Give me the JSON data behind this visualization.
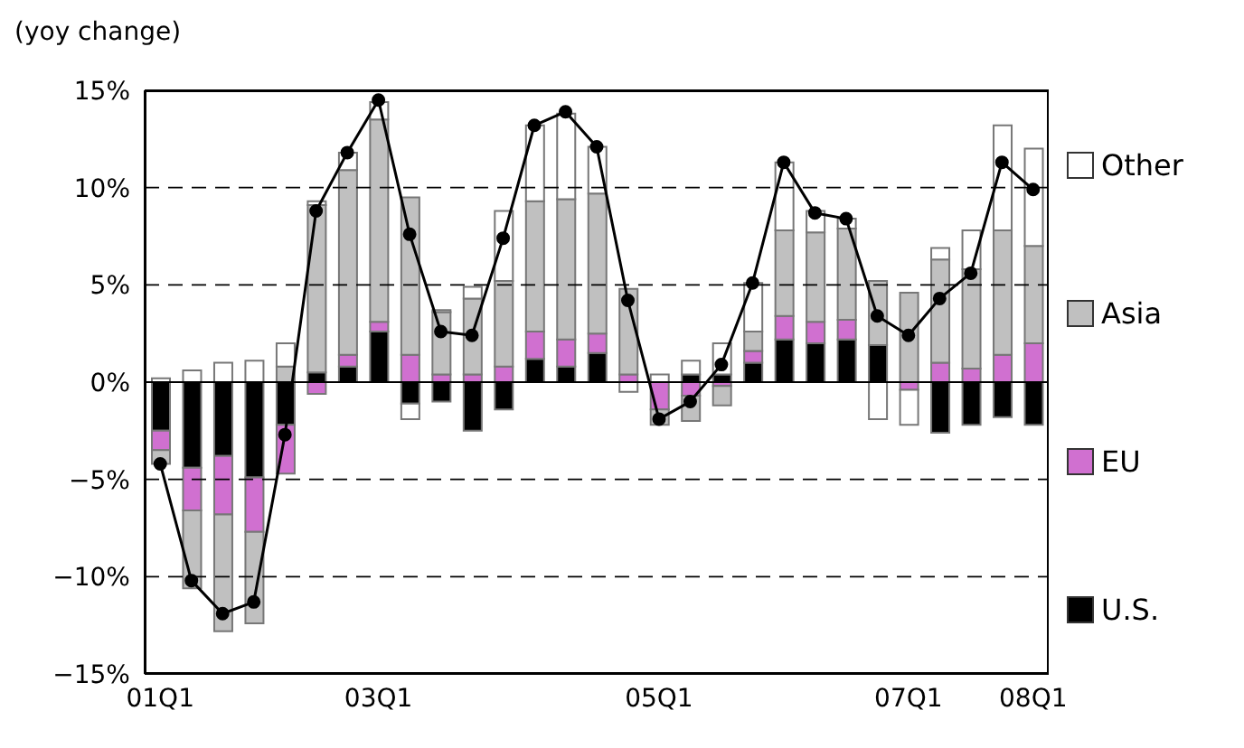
{
  "chart_data": {
    "type": "bar",
    "stacked": true,
    "ylabel": "(yoy change)",
    "categories": [
      "01Q1",
      null,
      null,
      null,
      null,
      null,
      null,
      "03Q1",
      null,
      null,
      null,
      null,
      null,
      null,
      null,
      null,
      "05Q1",
      null,
      null,
      null,
      null,
      null,
      null,
      null,
      "07Q1",
      null,
      null,
      null,
      "08Q1"
    ],
    "series": [
      {
        "name": "U.S.",
        "color": "#000000",
        "values": [
          -2.5,
          -4.4,
          -3.8,
          -4.9,
          -2.2,
          0.5,
          0.8,
          2.6,
          -1.1,
          -1.0,
          -2.5,
          -1.4,
          1.2,
          0.8,
          1.5,
          0,
          0,
          0.4,
          0.4,
          1.0,
          2.2,
          2.0,
          2.2,
          1.9,
          0,
          -2.6,
          -2.2,
          -1.8,
          -2.2
        ]
      },
      {
        "name": "EU",
        "color": "#d070d0",
        "values": [
          -1.0,
          -2.2,
          -3.0,
          -2.8,
          -2.5,
          -0.6,
          0.6,
          0.5,
          1.4,
          0.4,
          0.4,
          0.8,
          1.4,
          1.4,
          1.0,
          0.4,
          -1.4,
          -0.7,
          -0.2,
          0.6,
          1.2,
          1.1,
          1.0,
          0,
          -0.4,
          1.0,
          0.7,
          1.4,
          2.0
        ]
      },
      {
        "name": "Asia",
        "color": "#c0c0c0",
        "values": [
          -0.7,
          -4.0,
          -6.0,
          -4.7,
          0.8,
          8.6,
          9.5,
          10.4,
          8.1,
          3.2,
          3.9,
          4.4,
          6.7,
          7.2,
          7.2,
          4.4,
          -0.8,
          -1.3,
          -1.0,
          1.0,
          4.4,
          4.6,
          4.7,
          3.3,
          4.6,
          5.3,
          5.1,
          6.4,
          5.0
        ]
      },
      {
        "name": "Other",
        "color": "#ffffff",
        "values": [
          0.2,
          0.6,
          1.0,
          1.1,
          1.2,
          0.2,
          0.9,
          0.9,
          -0.8,
          0.1,
          0.6,
          3.6,
          3.9,
          4.4,
          2.4,
          -0.5,
          0.4,
          0.7,
          1.6,
          2.5,
          3.5,
          1.1,
          0.5,
          -1.9,
          -1.8,
          0.6,
          2.0,
          5.4,
          5.0
        ]
      },
      {
        "type": "line",
        "color": "#000000",
        "marker": "circle",
        "values": [
          -4.2,
          -10.2,
          -11.9,
          -11.3,
          -2.7,
          8.8,
          11.8,
          14.5,
          7.6,
          2.6,
          2.4,
          7.4,
          13.2,
          13.9,
          12.1,
          4.2,
          -1.9,
          -1.0,
          0.9,
          5.1,
          11.3,
          8.7,
          8.4,
          3.4,
          2.4,
          4.3,
          5.6,
          11.3,
          9.9
        ]
      }
    ],
    "ylim": [
      -15,
      15
    ],
    "yticks": [
      {
        "value": -15,
        "label": "−15%"
      },
      {
        "value": -10,
        "label": "−10%"
      },
      {
        "value": -5,
        "label": "−5%"
      },
      {
        "value": 0,
        "label": "0%"
      },
      {
        "value": 5,
        "label": "5%"
      },
      {
        "value": 10,
        "label": "10%"
      },
      {
        "value": 15,
        "label": "15%"
      }
    ],
    "grid": "y",
    "legend": "right",
    "ref_lines": [
      {
        "axis": "y",
        "value": 0,
        "color": "#000000",
        "line_style": "solid"
      }
    ]
  }
}
